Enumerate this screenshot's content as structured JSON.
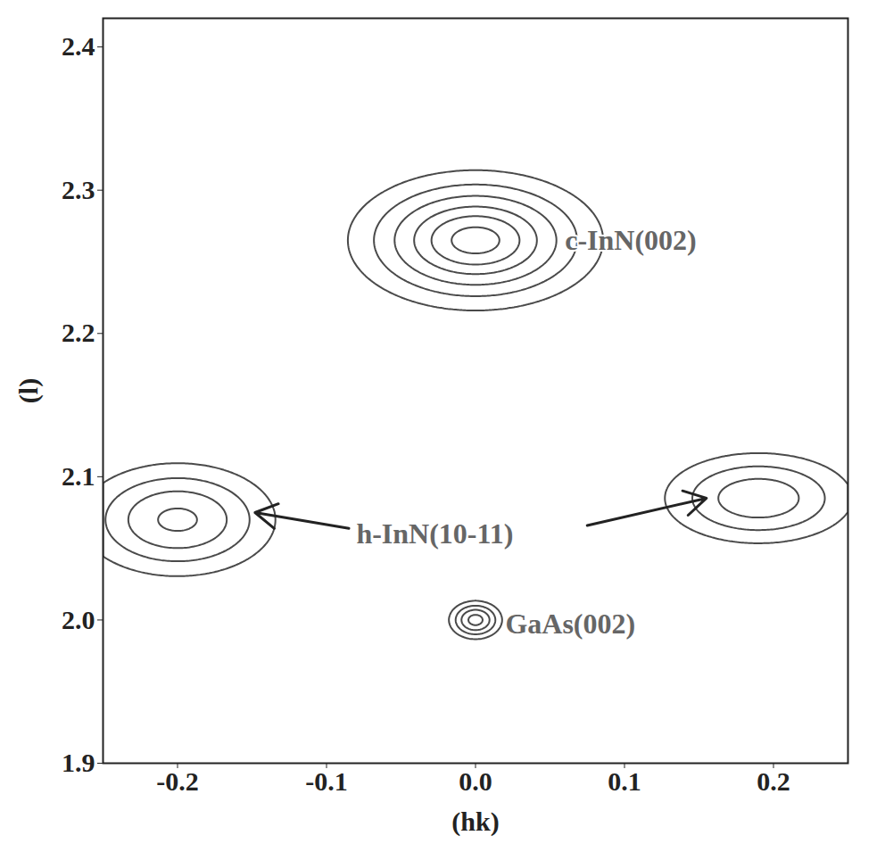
{
  "chart_data": {
    "type": "contour",
    "x_label": "(hk)",
    "y_label": "(l)",
    "xlim": [
      -0.25,
      0.25
    ],
    "xticks": [
      -0.2,
      -0.1,
      {
        "value": 0,
        "label": "0.0"
      },
      0.1,
      0.2
    ],
    "ylim": [
      1.9,
      2.42
    ],
    "yticks": [
      1.9,
      {
        "value": 2,
        "label": "2.0"
      },
      2.1,
      2.2,
      2.3,
      2.4
    ],
    "color": "#4a4a4a",
    "contour_levels": [
      0.05,
      0.15,
      0.3,
      0.5,
      0.7,
      0.9
    ],
    "peaks": [
      {
        "hk": 0.0,
        "l": 2.265,
        "width_hk": 0.035,
        "width_l": 0.02,
        "intensity": 1.0
      },
      {
        "hk": -0.2,
        "l": 2.07,
        "width_hk": 0.03,
        "width_l": 0.018,
        "intensity": 0.55
      },
      {
        "hk": 0.19,
        "l": 2.085,
        "width_hk": 0.03,
        "width_l": 0.015,
        "intensity": 0.45
      },
      {
        "hk": 0.0,
        "l": 2.0,
        "width_hk": 0.008,
        "width_l": 0.006,
        "intensity": 0.6
      }
    ],
    "annotations": [
      {
        "text": "c-InN(002)",
        "hk": 0.06,
        "l": 2.265
      },
      {
        "text": "h-InN(10-11)",
        "hk": -0.08,
        "l": 2.06
      },
      {
        "text": "GaAs(002)",
        "hk": 0.02,
        "l": 1.997
      }
    ],
    "arrows": [
      {
        "from": [
          -0.085,
          2.064
        ],
        "to": [
          -0.148,
          2.075
        ]
      },
      {
        "from": [
          0.075,
          2.066
        ],
        "to": [
          0.155,
          2.085
        ]
      }
    ]
  }
}
